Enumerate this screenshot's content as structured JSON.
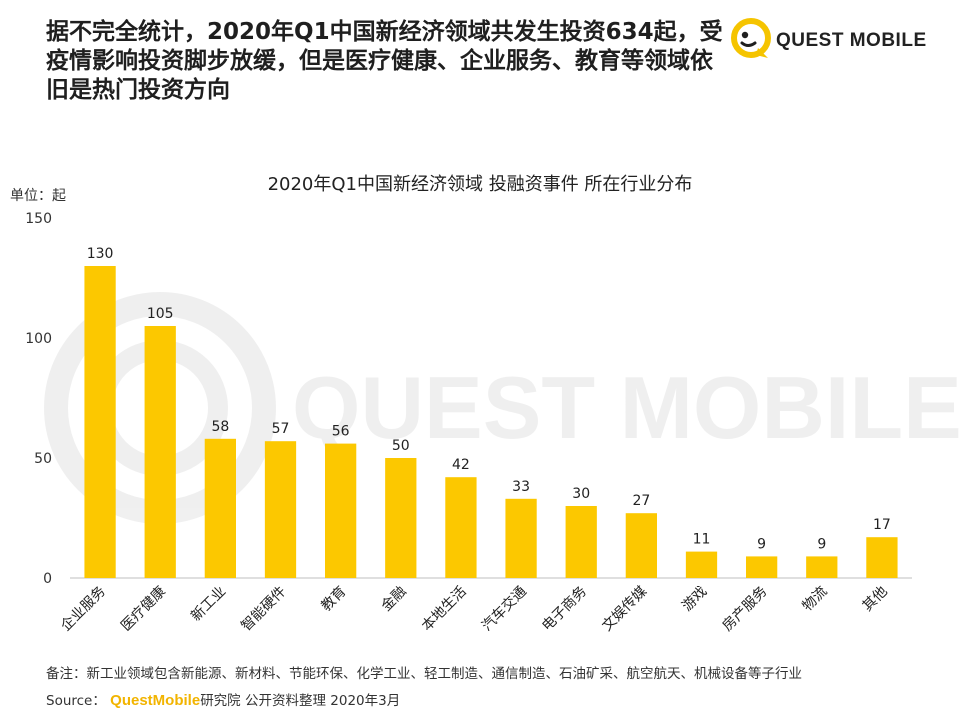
{
  "headline": "据不完全统计，2020年Q1中国新经济领域共发生投资634起，受疫情影响投资脚步放缓，但是医疗健康、企业服务、教育等领域依旧是热门投资方向",
  "logo": {
    "text": "QUEST MOBILE",
    "icon": "questmobile-logo-icon",
    "accent": "#f5c400"
  },
  "watermark": "QUEST MOBILE",
  "chart_data": {
    "type": "bar",
    "title": "2020年Q1中国新经济领域 投融资事件 所在行业分布",
    "ylabel": "单位：起",
    "ylim": [
      0,
      150
    ],
    "yticks": [
      0,
      50,
      100,
      150
    ],
    "grid": false,
    "bar_color": "#fcc800",
    "categories": [
      "企业服务",
      "医疗健康",
      "新工业",
      "智能硬件",
      "教育",
      "金融",
      "本地生活",
      "汽车交通",
      "电子商务",
      "文娱传媒",
      "游戏",
      "房产服务",
      "物流",
      "其他"
    ],
    "values": [
      130,
      105,
      58,
      57,
      56,
      50,
      42,
      33,
      30,
      27,
      11,
      9,
      9,
      17
    ]
  },
  "footnote": "备注：新工业领域包含新能源、新材料、节能环保、化学工业、轻工制造、通信制造、石油矿采、航空航天、机械设备等子行业",
  "source": {
    "label": "Source：",
    "brand": "QuestMobile",
    "rest": "研究院 公开资料整理 2020年3月"
  }
}
